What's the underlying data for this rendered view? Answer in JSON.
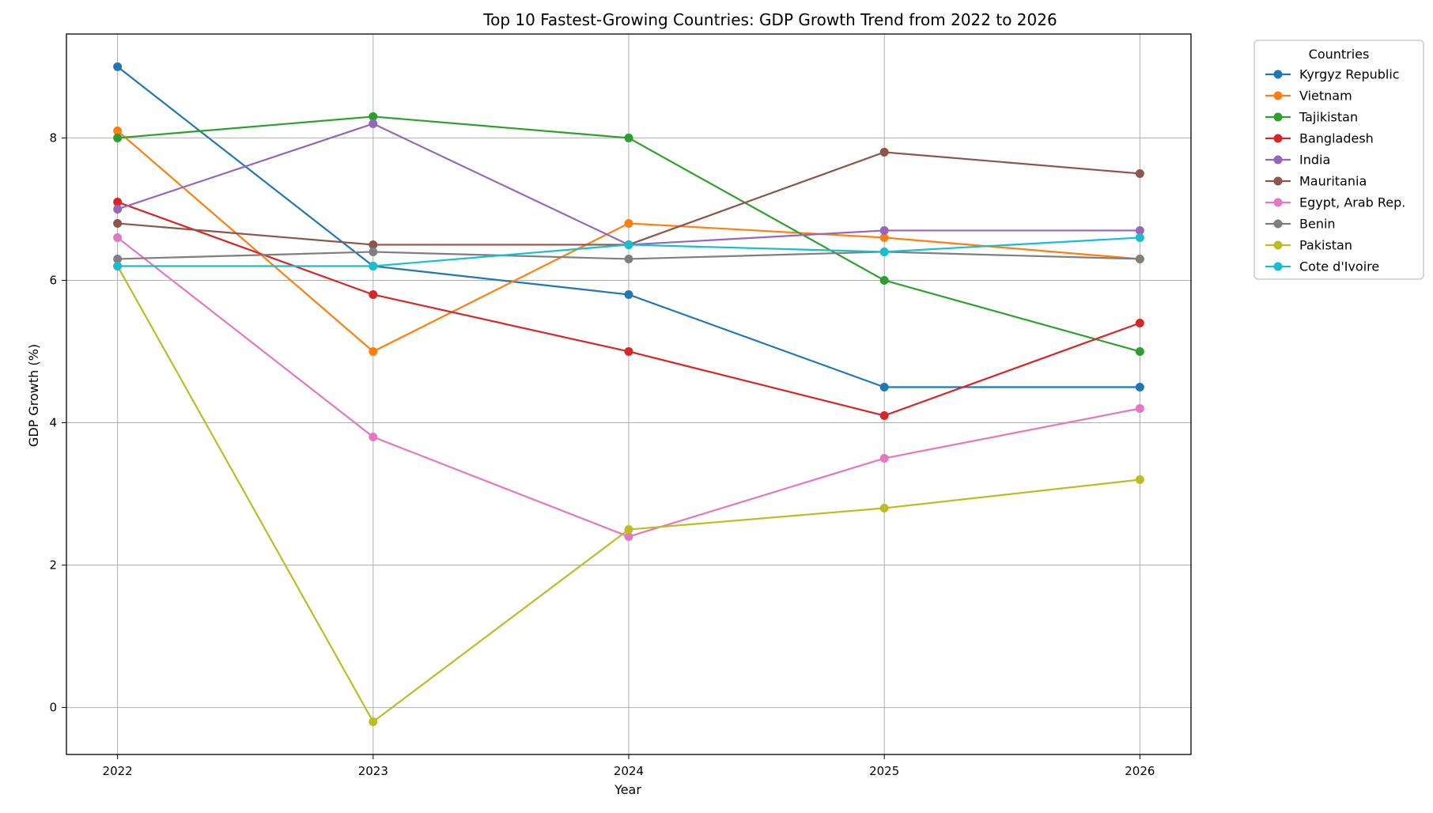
{
  "chart_data": {
    "type": "line",
    "title": "Top 10 Fastest-Growing Countries: GDP Growth Trend from 2022 to 2026",
    "xlabel": "Year",
    "ylabel": "GDP Growth (%)",
    "x": [
      "2022",
      "2023",
      "2024",
      "2025",
      "2026"
    ],
    "xlim": [
      2021.8,
      2026.2
    ],
    "ylim": [
      -0.66,
      9.46
    ],
    "yticks": [
      0,
      2,
      4,
      6,
      8
    ],
    "grid": true,
    "legend": {
      "title": "Countries",
      "placement": "outside-right-top"
    },
    "series": [
      {
        "name": "Kyrgyz Republic",
        "color": "#1f77b4",
        "values": [
          9.0,
          6.2,
          5.8,
          4.5,
          4.5
        ]
      },
      {
        "name": "Vietnam",
        "color": "#ff7f0e",
        "values": [
          8.1,
          5.0,
          6.8,
          6.6,
          6.3
        ]
      },
      {
        "name": "Tajikistan",
        "color": "#2ca02c",
        "values": [
          8.0,
          8.3,
          8.0,
          6.0,
          5.0
        ]
      },
      {
        "name": "Bangladesh",
        "color": "#d62728",
        "values": [
          7.1,
          5.8,
          5.0,
          4.1,
          5.4
        ]
      },
      {
        "name": "India",
        "color": "#9467bd",
        "values": [
          7.0,
          8.2,
          6.5,
          6.7,
          6.7
        ]
      },
      {
        "name": "Mauritania",
        "color": "#8c564b",
        "values": [
          6.8,
          6.5,
          6.5,
          7.8,
          7.5
        ]
      },
      {
        "name": "Egypt, Arab Rep.",
        "color": "#e377c2",
        "values": [
          6.6,
          3.8,
          2.4,
          3.5,
          4.2
        ]
      },
      {
        "name": "Benin",
        "color": "#7f7f7f",
        "values": [
          6.3,
          6.4,
          6.3,
          6.4,
          6.3
        ]
      },
      {
        "name": "Pakistan",
        "color": "#bcbd22",
        "values": [
          6.2,
          -0.2,
          2.5,
          2.8,
          3.2
        ]
      },
      {
        "name": "Cote d'Ivoire",
        "color": "#17becf",
        "values": [
          6.2,
          6.2,
          6.5,
          6.4,
          6.6
        ]
      }
    ]
  }
}
